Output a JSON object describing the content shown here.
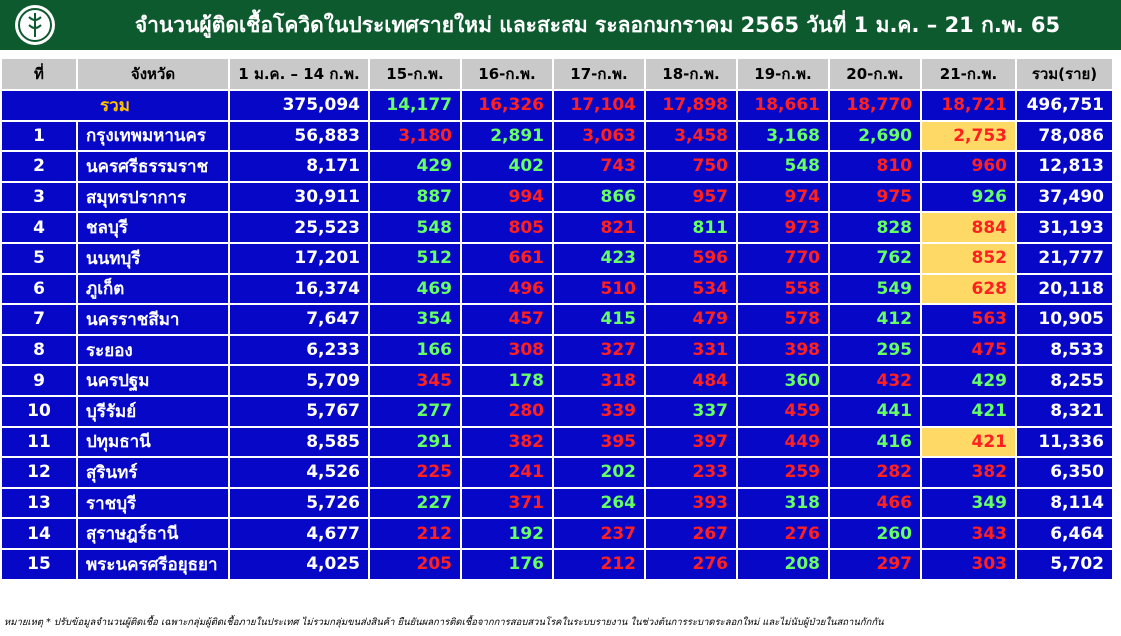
{
  "header": {
    "title": "จำนวนผู้ติดเชื้อโควิดในประเทศรายใหม่ และสะสม ระลอกมกราคม 2565 วันที่ 1 ม.ค. – 21 ก.พ. 65"
  },
  "table": {
    "columns": [
      "ที่",
      "จังหวัด",
      "1 ม.ค. – 14 ก.พ.",
      "15-ก.พ.",
      "16-ก.พ.",
      "17-ก.พ.",
      "18-ก.พ.",
      "19-ก.พ.",
      "20-ก.พ.",
      "21-ก.พ.",
      "รวม(ราย)"
    ],
    "total_row": {
      "cells": [
        "รวม",
        "375,094",
        "14,177",
        "16,326",
        "17,104",
        "17,898",
        "18,661",
        "18,770",
        "18,721",
        "496,751"
      ],
      "colors": [
        "#66ff66",
        "#ff2020",
        "#ff2020",
        "#ff2020",
        "#ff2020",
        "#ff2020",
        "#ff2020"
      ]
    },
    "rows": [
      {
        "cells": [
          "1",
          "กรุงเทพมหานคร",
          "56,883",
          "3,180",
          "2,891",
          "3,063",
          "3,458",
          "3,168",
          "2,690",
          "2,753",
          "78,086"
        ],
        "colors": [
          "#ff2020",
          "#66ff66",
          "#ff2020",
          "#ff2020",
          "#66ff66",
          "#66ff66",
          "#ff2020"
        ],
        "highlight": true
      },
      {
        "cells": [
          "2",
          "นครศรีธรรมราช",
          "8,171",
          "429",
          "402",
          "743",
          "750",
          "548",
          "810",
          "960",
          "12,813"
        ],
        "colors": [
          "#66ff66",
          "#66ff66",
          "#ff2020",
          "#ff2020",
          "#66ff66",
          "#ff2020",
          "#ff2020"
        ],
        "highlight": false
      },
      {
        "cells": [
          "3",
          "สมุทรปราการ",
          "30,911",
          "887",
          "994",
          "866",
          "957",
          "974",
          "975",
          "926",
          "37,490"
        ],
        "colors": [
          "#66ff66",
          "#ff2020",
          "#66ff66",
          "#ff2020",
          "#ff2020",
          "#ff2020",
          "#66ff66"
        ],
        "highlight": false
      },
      {
        "cells": [
          "4",
          "ชลบุรี",
          "25,523",
          "548",
          "805",
          "821",
          "811",
          "973",
          "828",
          "884",
          "31,193"
        ],
        "colors": [
          "#66ff66",
          "#ff2020",
          "#ff2020",
          "#66ff66",
          "#ff2020",
          "#66ff66",
          "#ff2020"
        ],
        "highlight": true
      },
      {
        "cells": [
          "5",
          "นนทบุรี",
          "17,201",
          "512",
          "661",
          "423",
          "596",
          "770",
          "762",
          "852",
          "21,777"
        ],
        "colors": [
          "#66ff66",
          "#ff2020",
          "#66ff66",
          "#ff2020",
          "#ff2020",
          "#66ff66",
          "#ff2020"
        ],
        "highlight": true
      },
      {
        "cells": [
          "6",
          "ภูเก็ต",
          "16,374",
          "469",
          "496",
          "510",
          "534",
          "558",
          "549",
          "628",
          "20,118"
        ],
        "colors": [
          "#66ff66",
          "#ff2020",
          "#ff2020",
          "#ff2020",
          "#ff2020",
          "#66ff66",
          "#ff2020"
        ],
        "highlight": true
      },
      {
        "cells": [
          "7",
          "นครราชสีมา",
          "7,647",
          "354",
          "457",
          "415",
          "479",
          "578",
          "412",
          "563",
          "10,905"
        ],
        "colors": [
          "#66ff66",
          "#ff2020",
          "#66ff66",
          "#ff2020",
          "#ff2020",
          "#66ff66",
          "#ff2020"
        ],
        "highlight": false
      },
      {
        "cells": [
          "8",
          "ระยอง",
          "6,233",
          "166",
          "308",
          "327",
          "331",
          "398",
          "295",
          "475",
          "8,533"
        ],
        "colors": [
          "#66ff66",
          "#ff2020",
          "#ff2020",
          "#ff2020",
          "#ff2020",
          "#66ff66",
          "#ff2020"
        ],
        "highlight": false
      },
      {
        "cells": [
          "9",
          "นครปฐม",
          "5,709",
          "345",
          "178",
          "318",
          "484",
          "360",
          "432",
          "429",
          "8,255"
        ],
        "colors": [
          "#ff2020",
          "#66ff66",
          "#ff2020",
          "#ff2020",
          "#66ff66",
          "#ff2020",
          "#66ff66"
        ],
        "highlight": false
      },
      {
        "cells": [
          "10",
          "บุรีรัมย์",
          "5,767",
          "277",
          "280",
          "339",
          "337",
          "459",
          "441",
          "421",
          "8,321"
        ],
        "colors": [
          "#66ff66",
          "#ff2020",
          "#ff2020",
          "#66ff66",
          "#ff2020",
          "#66ff66",
          "#66ff66"
        ],
        "highlight": false
      },
      {
        "cells": [
          "11",
          "ปทุมธานี",
          "8,585",
          "291",
          "382",
          "395",
          "397",
          "449",
          "416",
          "421",
          "11,336"
        ],
        "colors": [
          "#66ff66",
          "#ff2020",
          "#ff2020",
          "#ff2020",
          "#ff2020",
          "#66ff66",
          "#ff2020"
        ],
        "highlight": true
      },
      {
        "cells": [
          "12",
          "สุรินทร์",
          "4,526",
          "225",
          "241",
          "202",
          "233",
          "259",
          "282",
          "382",
          "6,350"
        ],
        "colors": [
          "#ff2020",
          "#ff2020",
          "#66ff66",
          "#ff2020",
          "#ff2020",
          "#ff2020",
          "#ff2020"
        ],
        "highlight": false
      },
      {
        "cells": [
          "13",
          "ราชบุรี",
          "5,726",
          "227",
          "371",
          "264",
          "393",
          "318",
          "466",
          "349",
          "8,114"
        ],
        "colors": [
          "#66ff66",
          "#ff2020",
          "#66ff66",
          "#ff2020",
          "#66ff66",
          "#ff2020",
          "#66ff66"
        ],
        "highlight": false
      },
      {
        "cells": [
          "14",
          "สุราษฎร์ธานี",
          "4,677",
          "212",
          "192",
          "237",
          "267",
          "276",
          "260",
          "343",
          "6,464"
        ],
        "colors": [
          "#ff2020",
          "#66ff66",
          "#ff2020",
          "#ff2020",
          "#ff2020",
          "#66ff66",
          "#ff2020"
        ],
        "highlight": false
      },
      {
        "cells": [
          "15",
          "พระนครศรีอยุธยา",
          "4,025",
          "205",
          "176",
          "212",
          "276",
          "208",
          "297",
          "303",
          "5,702"
        ],
        "colors": [
          "#ff2020",
          "#66ff66",
          "#ff2020",
          "#ff2020",
          "#66ff66",
          "#ff2020",
          "#ff2020"
        ],
        "highlight": false
      }
    ]
  },
  "footer": {
    "note": "หมายเหตุ * ปรับข้อมูลจำนวนผู้ติดเชื้อ เฉพาะกลุ่มผู้ติดเชื้อภายในประเทศ ไม่รวมกลุ่มขนส่งสินค้า ยืนยันผลการติดเชื้อจากการสอบสวนโรคในระบบรายงาน ในช่วงต้นการระบาดระลอกใหม่ และไม่นับผู้ป่วยในสถานกักกัน"
  }
}
